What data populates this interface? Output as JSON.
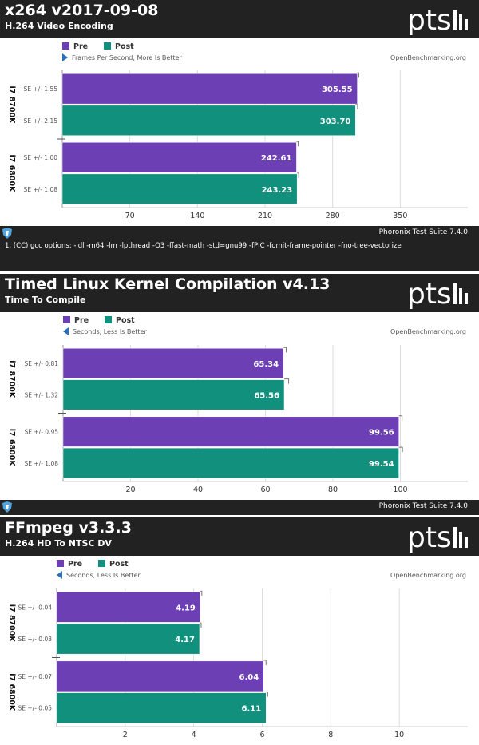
{
  "colors": {
    "pre": "#6c3fb5",
    "post": "#11917d",
    "header_bg": "#222222",
    "grid": "#dddddd",
    "link": "#555555"
  },
  "icons": {
    "footer": "phoronix-shield-icon",
    "logo": "pts-logo"
  },
  "chart_data": [
    {
      "type": "bar",
      "orientation": "horizontal",
      "title": "x264 v2017-09-08",
      "subtitle": "H.264 Video Encoding",
      "legend": [
        "Pre",
        "Post"
      ],
      "metric_label": "Frames Per Second, More Is Better",
      "metric_direction": "more",
      "site": "OpenBenchmarking.org",
      "categories": [
        "i7 8700K",
        "i7 6800K"
      ],
      "series": [
        {
          "name": "Pre",
          "values": [
            305.55,
            242.61
          ],
          "labels": [
            "305.55",
            "242.61"
          ],
          "errors": [
            1.55,
            1.0
          ],
          "se_labels": [
            "SE +/- 1.55",
            "SE +/- 1.00"
          ]
        },
        {
          "name": "Post",
          "values": [
            303.7,
            243.23
          ],
          "labels": [
            "303.70",
            "243.23"
          ],
          "errors": [
            2.15,
            1.08
          ],
          "se_labels": [
            "SE +/- 2.15",
            "SE +/- 1.08"
          ]
        }
      ],
      "xlim": [
        0,
        420
      ],
      "ticks": [
        70,
        140,
        210,
        280,
        350
      ],
      "tick_labels": [
        "70",
        "140",
        "210",
        "280",
        "350"
      ],
      "footer": "Phoronix Test Suite 7.4.0",
      "note": "1. (CC) gcc options: -ldl -m64 -lm -lpthread -O3 -ffast-math -std=gnu99 -fPIC -fomit-frame-pointer -fno-tree-vectorize"
    },
    {
      "type": "bar",
      "orientation": "horizontal",
      "title": "Timed Linux Kernel Compilation v4.13",
      "subtitle": "Time To Compile",
      "legend": [
        "Pre",
        "Post"
      ],
      "metric_label": "Seconds, Less Is Better",
      "metric_direction": "less",
      "site": "OpenBenchmarking.org",
      "categories": [
        "i7 8700K",
        "i7 6800K"
      ],
      "series": [
        {
          "name": "Pre",
          "values": [
            65.34,
            99.56
          ],
          "labels": [
            "65.34",
            "99.56"
          ],
          "errors": [
            0.81,
            0.95
          ],
          "se_labels": [
            "SE +/- 0.81",
            "SE +/- 0.95"
          ]
        },
        {
          "name": "Post",
          "values": [
            65.56,
            99.54
          ],
          "labels": [
            "65.56",
            "99.54"
          ],
          "errors": [
            1.32,
            1.08
          ],
          "se_labels": [
            "SE +/- 1.32",
            "SE +/- 1.08"
          ]
        }
      ],
      "xlim": [
        0,
        120
      ],
      "ticks": [
        20,
        40,
        60,
        80,
        100
      ],
      "tick_labels": [
        "20",
        "40",
        "60",
        "80",
        "100"
      ],
      "footer": "Phoronix Test Suite 7.4.0",
      "note": ""
    },
    {
      "type": "bar",
      "orientation": "horizontal",
      "title": "FFmpeg v3.3.3",
      "subtitle": "H.264 HD To NTSC DV",
      "legend": [
        "Pre",
        "Post"
      ],
      "metric_label": "Seconds, Less Is Better",
      "metric_direction": "less",
      "site": "OpenBenchmarking.org",
      "categories": [
        "i7 8700K",
        "i7 6800K"
      ],
      "series": [
        {
          "name": "Pre",
          "values": [
            4.19,
            6.04
          ],
          "labels": [
            "4.19",
            "6.04"
          ],
          "errors": [
            0.04,
            0.07
          ],
          "se_labels": [
            "SE +/- 0.04",
            "SE +/- 0.07"
          ]
        },
        {
          "name": "Post",
          "values": [
            4.17,
            6.11
          ],
          "labels": [
            "4.17",
            "6.11"
          ],
          "errors": [
            0.03,
            0.05
          ],
          "se_labels": [
            "SE +/- 0.03",
            "SE +/- 0.05"
          ]
        }
      ],
      "xlim": [
        0,
        12
      ],
      "ticks": [
        2,
        4,
        6,
        8,
        10
      ],
      "tick_labels": [
        "2",
        "4",
        "6",
        "8",
        "10"
      ],
      "footer": "",
      "note": ""
    }
  ]
}
